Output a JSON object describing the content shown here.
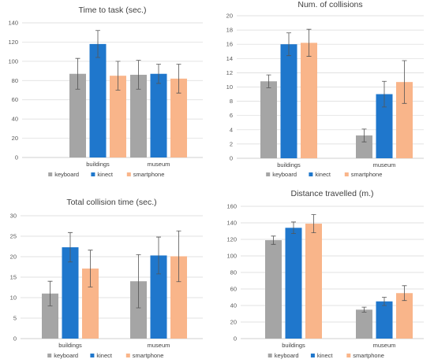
{
  "colors": {
    "keyboard": "#a5a5a5",
    "kinect": "#1f77cc",
    "smartphone": "#f9b58a"
  },
  "chart_data": [
    {
      "type": "bar",
      "title": "Time to task (sec.)",
      "categories": [
        "buildings",
        "museum"
      ],
      "ylim": [
        0,
        140
      ],
      "yticks": [
        0,
        20,
        40,
        60,
        80,
        100,
        120,
        140
      ],
      "grid": true,
      "legend": "bottom",
      "series": [
        {
          "name": "keyboard",
          "values": [
            87,
            86
          ],
          "errors": [
            16,
            15
          ]
        },
        {
          "name": "kinect",
          "values": [
            118,
            87
          ],
          "errors": [
            14,
            10
          ]
        },
        {
          "name": "smartphone",
          "values": [
            85,
            82
          ],
          "errors": [
            15,
            15
          ]
        }
      ]
    },
    {
      "type": "bar",
      "title": "Num. of collisions",
      "categories": [
        "buildings",
        "museum"
      ],
      "ylim": [
        0,
        20
      ],
      "yticks": [
        0,
        2,
        4,
        6,
        8,
        10,
        12,
        14,
        16,
        18,
        20
      ],
      "grid": true,
      "legend": "bottom",
      "series": [
        {
          "name": "keyboard",
          "values": [
            10.8,
            3.2
          ],
          "errors": [
            0.9,
            0.9
          ]
        },
        {
          "name": "kinect",
          "values": [
            16,
            9
          ],
          "errors": [
            1.6,
            1.8
          ]
        },
        {
          "name": "smartphone",
          "values": [
            16.2,
            10.7
          ],
          "errors": [
            1.9,
            3.0
          ]
        }
      ]
    },
    {
      "type": "bar",
      "title": "Total collision time (sec.)",
      "categories": [
        "buildings",
        "museum"
      ],
      "ylim": [
        0,
        30
      ],
      "yticks": [
        0,
        5,
        10,
        15,
        20,
        25,
        30
      ],
      "grid": true,
      "legend": "bottom",
      "series": [
        {
          "name": "keyboard",
          "values": [
            11,
            14
          ],
          "errors": [
            3,
            6.5
          ]
        },
        {
          "name": "kinect",
          "values": [
            22.3,
            20.3
          ],
          "errors": [
            3.6,
            4.5
          ]
        },
        {
          "name": "smartphone",
          "values": [
            17.1,
            20.1
          ],
          "errors": [
            4.5,
            6.2
          ]
        }
      ]
    },
    {
      "type": "bar",
      "title": "Distance travelled (m.)",
      "categories": [
        "buildings",
        "museum"
      ],
      "ylim": [
        0,
        160
      ],
      "yticks": [
        0,
        20,
        40,
        60,
        80,
        100,
        120,
        140,
        160
      ],
      "grid": true,
      "legend": "bottom",
      "series": [
        {
          "name": "keyboard",
          "values": [
            119,
            35
          ],
          "errors": [
            5,
            3
          ]
        },
        {
          "name": "kinect",
          "values": [
            134,
            45
          ],
          "errors": [
            7,
            5
          ]
        },
        {
          "name": "smartphone",
          "values": [
            139,
            55
          ],
          "errors": [
            11,
            9
          ]
        }
      ]
    }
  ]
}
